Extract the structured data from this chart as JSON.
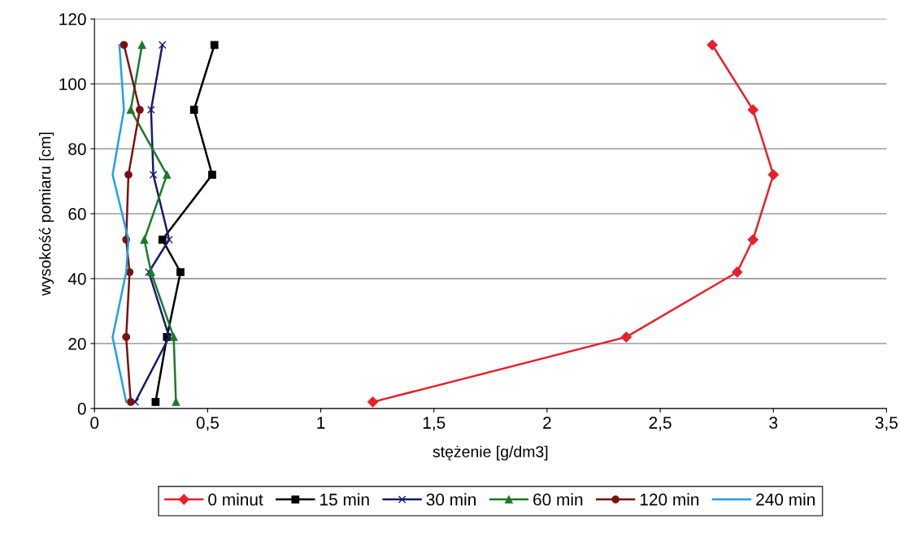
{
  "chart_data": {
    "type": "line",
    "xlabel": "stężenie [g/dm3]",
    "ylabel": "wysokość pomiaru [cm]",
    "xlim": [
      0,
      3.5
    ],
    "xticks": [
      0,
      {
        "value": 0.5,
        "label": "0,5"
      },
      1,
      {
        "value": 1.5,
        "label": "1,5"
      },
      2,
      {
        "value": 2.5,
        "label": "2,5"
      },
      3,
      {
        "value": 3.5,
        "label": "3,5"
      }
    ],
    "ylim": [
      0,
      120
    ],
    "yticks": [
      0,
      20,
      40,
      60,
      80,
      100,
      120
    ],
    "grid": "y",
    "legend": "bottom",
    "series": [
      {
        "name": "0 minut",
        "color": "#e8202a",
        "marker": "diamond",
        "x": [
          1.23,
          2.35,
          2.84,
          2.91,
          3.0,
          2.91,
          2.73
        ],
        "values": [
          2,
          22,
          42,
          52,
          72,
          92,
          112
        ]
      },
      {
        "name": "15 min",
        "color": "#000000",
        "marker": "square",
        "x": [
          0.27,
          0.32,
          0.38,
          0.3,
          0.52,
          0.44,
          0.53
        ],
        "values": [
          2,
          22,
          42,
          52,
          72,
          92,
          112
        ]
      },
      {
        "name": "30 min",
        "color": "#1a1a6e",
        "marker": "cross",
        "x": [
          0.18,
          0.33,
          0.24,
          0.33,
          0.26,
          0.25,
          0.3
        ],
        "values": [
          2,
          22,
          42,
          52,
          72,
          92,
          112
        ]
      },
      {
        "name": "60 min",
        "color": "#1a7a2a",
        "marker": "triangle",
        "x": [
          0.36,
          0.35,
          0.25,
          0.22,
          0.32,
          0.16,
          0.21
        ],
        "values": [
          2,
          22,
          42,
          52,
          72,
          92,
          112
        ]
      },
      {
        "name": "120 min",
        "color": "#7a1010",
        "marker": "circle",
        "x": [
          0.16,
          0.14,
          0.155,
          0.14,
          0.15,
          0.2,
          0.13
        ],
        "values": [
          2,
          22,
          42,
          52,
          72,
          92,
          112
        ]
      },
      {
        "name": "240 min",
        "color": "#1ea0e6",
        "marker": "none",
        "x": [
          0.14,
          0.08,
          0.14,
          0.15,
          0.08,
          0.13,
          0.11
        ],
        "values": [
          2,
          22,
          42,
          52,
          72,
          92,
          112
        ]
      }
    ]
  }
}
